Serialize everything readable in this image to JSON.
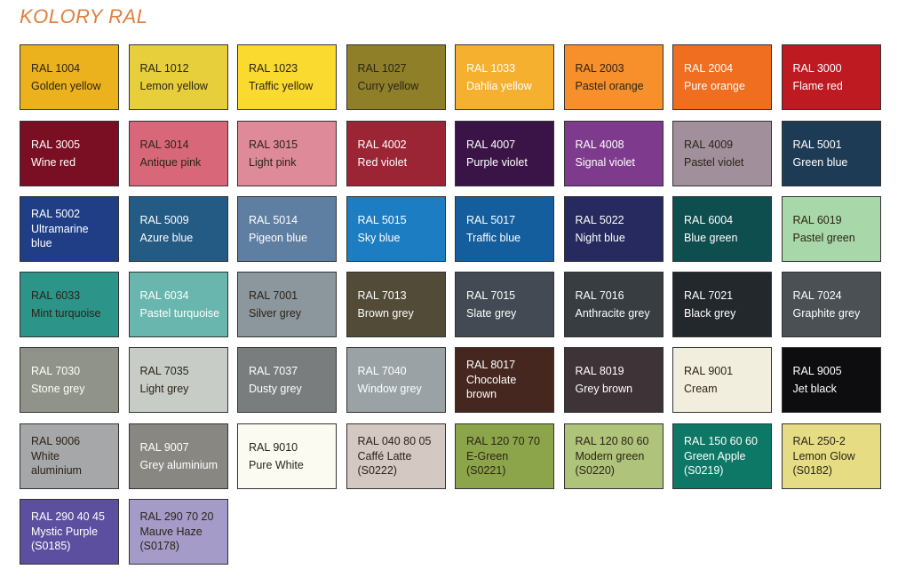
{
  "title": "KOLORY RAL",
  "swatches": [
    {
      "code": "RAL 1004",
      "name": [
        "Golden yellow"
      ],
      "color": "#ECB21E",
      "text": "dark"
    },
    {
      "code": "RAL 1012",
      "name": [
        "Lemon yellow"
      ],
      "color": "#E6CF3A",
      "text": "dark"
    },
    {
      "code": "RAL 1023",
      "name": [
        "Traffic yellow"
      ],
      "color": "#FADA2E",
      "text": "dark"
    },
    {
      "code": "RAL 1027",
      "name": [
        "Curry yellow"
      ],
      "color": "#8E7F28",
      "text": "dark"
    },
    {
      "code": "RAL 1033",
      "name": [
        "Dahlia yellow"
      ],
      "color": "#F5B02F",
      "text": "light"
    },
    {
      "code": "RAL 2003",
      "name": [
        "Pastel orange"
      ],
      "color": "#F7902A",
      "text": "dark"
    },
    {
      "code": "RAL 2004",
      "name": [
        "Pure orange"
      ],
      "color": "#EF6E1F",
      "text": "light"
    },
    {
      "code": "RAL 3000",
      "name": [
        "Flame red"
      ],
      "color": "#BD1A22",
      "text": "light"
    },
    {
      "code": "RAL 3005",
      "name": [
        "Wine red"
      ],
      "color": "#7A0E22",
      "text": "light"
    },
    {
      "code": "RAL 3014",
      "name": [
        "Antique pink"
      ],
      "color": "#D8677A",
      "text": "dark"
    },
    {
      "code": "RAL 3015",
      "name": [
        "Light pink"
      ],
      "color": "#DE8A98",
      "text": "dark"
    },
    {
      "code": "RAL 4002",
      "name": [
        "Red violet"
      ],
      "color": "#9C2535",
      "text": "light"
    },
    {
      "code": "RAL 4007",
      "name": [
        "Purple violet"
      ],
      "color": "#3A1446",
      "text": "light"
    },
    {
      "code": "RAL 4008",
      "name": [
        "Signal violet"
      ],
      "color": "#7E3A8C",
      "text": "light"
    },
    {
      "code": "RAL 4009",
      "name": [
        "Pastel violet"
      ],
      "color": "#A1909B",
      "text": "dark"
    },
    {
      "code": "RAL 5001",
      "name": [
        "Green blue"
      ],
      "color": "#1E3B55",
      "text": "light"
    },
    {
      "code": "RAL 5002",
      "name": [
        "Ultramarine",
        "blue"
      ],
      "color": "#1F3E86",
      "text": "light"
    },
    {
      "code": "RAL 5009",
      "name": [
        "Azure blue"
      ],
      "color": "#245B84",
      "text": "light"
    },
    {
      "code": "RAL 5014",
      "name": [
        "Pigeon blue"
      ],
      "color": "#5F7FA2",
      "text": "light"
    },
    {
      "code": "RAL 5015",
      "name": [
        "Sky blue"
      ],
      "color": "#1C7DC2",
      "text": "light"
    },
    {
      "code": "RAL 5017",
      "name": [
        "Traffic blue"
      ],
      "color": "#145E9D",
      "text": "light"
    },
    {
      "code": "RAL 5022",
      "name": [
        "Night blue"
      ],
      "color": "#272A5F",
      "text": "light"
    },
    {
      "code": "RAL 6004",
      "name": [
        "Blue green"
      ],
      "color": "#0F4E4E",
      "text": "light"
    },
    {
      "code": "RAL 6019",
      "name": [
        "Pastel green"
      ],
      "color": "#A8D8A9",
      "text": "dark"
    },
    {
      "code": "RAL 6033",
      "name": [
        "Mint turquoise"
      ],
      "color": "#2C9488",
      "text": "dark"
    },
    {
      "code": "RAL 6034",
      "name": [
        "Pastel turquoise"
      ],
      "color": "#69B6AE",
      "text": "light"
    },
    {
      "code": "RAL 7001",
      "name": [
        "Silver grey"
      ],
      "color": "#8B969D",
      "text": "dark"
    },
    {
      "code": "RAL 7013",
      "name": [
        "Brown grey"
      ],
      "color": "#514B37",
      "text": "light"
    },
    {
      "code": "RAL 7015",
      "name": [
        "Slate grey"
      ],
      "color": "#434A53",
      "text": "light"
    },
    {
      "code": "RAL 7016",
      "name": [
        "Anthracite grey"
      ],
      "color": "#373D41",
      "text": "light"
    },
    {
      "code": "RAL 7021",
      "name": [
        "Black grey"
      ],
      "color": "#23282C",
      "text": "light"
    },
    {
      "code": "RAL 7024",
      "name": [
        "Graphite grey"
      ],
      "color": "#4A5054",
      "text": "light"
    },
    {
      "code": "RAL 7030",
      "name": [
        "Stone grey"
      ],
      "color": "#909389",
      "text": "light"
    },
    {
      "code": "RAL 7035",
      "name": [
        "Light grey"
      ],
      "color": "#C8CCC7",
      "text": "dark"
    },
    {
      "code": "RAL 7037",
      "name": [
        "Dusty grey"
      ],
      "color": "#7A7D7D",
      "text": "light"
    },
    {
      "code": "RAL 7040",
      "name": [
        "Window grey"
      ],
      "color": "#9BA2A6",
      "text": "light"
    },
    {
      "code": "RAL 8017",
      "name": [
        "Chocolate",
        "brown"
      ],
      "color": "#45271F",
      "text": "light"
    },
    {
      "code": "RAL 8019",
      "name": [
        "Grey brown"
      ],
      "color": "#3E3336",
      "text": "light"
    },
    {
      "code": "RAL 9001",
      "name": [
        "Cream"
      ],
      "color": "#F2EEDD",
      "text": "dark"
    },
    {
      "code": "RAL 9005",
      "name": [
        "Jet black"
      ],
      "color": "#0D0D0F",
      "text": "light"
    },
    {
      "code": "RAL 9006",
      "name": [
        "White",
        "aluminium"
      ],
      "color": "#A5A7A8",
      "text": "dark"
    },
    {
      "code": "RAL 9007",
      "name": [
        "Grey aluminium"
      ],
      "color": "#898782",
      "text": "light"
    },
    {
      "code": "RAL 9010",
      "name": [
        "Pure White"
      ],
      "color": "#FBFBF2",
      "text": "dark"
    },
    {
      "code": "RAL 040 80 05",
      "name": [
        "Caffé Latte",
        "(S0222)"
      ],
      "color": "#D3C8C2",
      "text": "dark"
    },
    {
      "code": "RAL 120 70 70",
      "name": [
        "E-Green",
        "(S0221)"
      ],
      "color": "#8CA54A",
      "text": "dark"
    },
    {
      "code": "RAL 120 80 60",
      "name": [
        "Modern green",
        "(S0220)"
      ],
      "color": "#AFC37A",
      "text": "dark"
    },
    {
      "code": "RAL 150 60 60",
      "name": [
        "Green Apple",
        "(S0219)"
      ],
      "color": "#0E7867",
      "text": "light"
    },
    {
      "code": "RAL 250-2",
      "name": [
        "Lemon Glow",
        "(S0182)"
      ],
      "color": "#E6DC84",
      "text": "dark"
    },
    {
      "code": "RAL 290 40 45",
      "name": [
        "Mystic Purple",
        "(S0185)"
      ],
      "color": "#5C4F9F",
      "text": "light"
    },
    {
      "code": "RAL 290 70 20",
      "name": [
        "Mauve Haze",
        "(S0178)"
      ],
      "color": "#A49BC8",
      "text": "dark"
    }
  ]
}
